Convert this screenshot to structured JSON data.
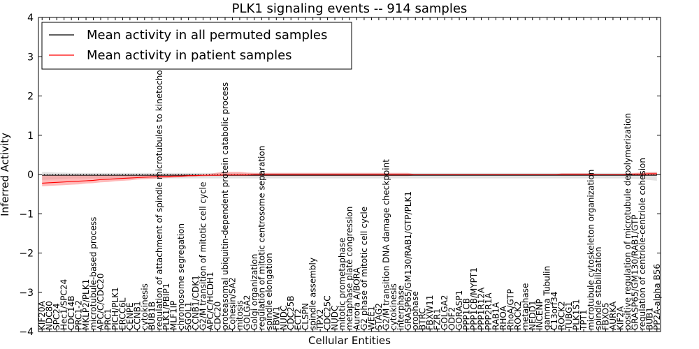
{
  "chart_data": {
    "type": "line",
    "title": "PLK1 signaling events -- 914 samples",
    "xlabel": "Cellular Entities",
    "ylabel": "Inferred Activity",
    "ylim": [
      -4,
      4
    ],
    "yticks": [
      -4,
      -3,
      -2,
      -1,
      0,
      1,
      2,
      3,
      4
    ],
    "ytick_labels": [
      "−4",
      "−3",
      "−2",
      "−1",
      "0",
      "1",
      "2",
      "3",
      "4"
    ],
    "legend": {
      "placement": "top-left",
      "entries": [
        {
          "label": "Mean activity in all permuted samples",
          "color": "#000000"
        },
        {
          "label": "Mean activity in patient samples",
          "color": "#ff0000"
        }
      ]
    },
    "categories": [
      "KIF20A",
      "NDC80",
      "SPC24",
      "Hec1/SPC24",
      "CDC14B",
      "PRC1-2",
      "MKLP2/PLK1",
      "microtubule-based process",
      "APC/C/CDC20",
      "PRC1",
      "PICH/PLK1",
      "ERCC6L",
      "CENPE",
      "CCNB1",
      "cytokinesis",
      "BUB1B",
      "regulation of attachment of spindle microtubules to kinetochore",
      "PLK1/PBIP1",
      "MLF1IP",
      "chromosome segregation",
      "SGOL1",
      "CCNB1/CDK1",
      "G2/M transition of mitotic cell cycle",
      "APC/C/HCDH1",
      "CDC20",
      "proteasomal ubiquitin-dependent protein catabolic process",
      "Cohesin/SA2",
      "mitosis",
      "GOLGA2",
      "Golgi organization",
      "regulation of mitotic centrosome separation",
      "spindle elongation",
      "FBW1",
      "NUDC",
      "CDC25B",
      "ECT2",
      "CLSPN",
      "spindle assembly",
      "TPX2",
      "CDC25C",
      "NUDC",
      "mitotic prometaphase",
      "metaphase plate congression",
      "Aurora A/BORA",
      "G2 phase of mitotic cell cycle",
      "WEE1",
      "STAG2",
      "G2/M transition DNA damage checkpoint",
      "cytokinesis",
      "interphase",
      "GRASP65/GM130/RAB1/GTP/PLK1",
      "prophase",
      "BTRC",
      "FBXW11",
      "FZR1",
      "GOLGA2",
      "ODF2",
      "GORASP1",
      "PPP1CB",
      "PPP1CB/MYPT1",
      "PPP1R12A",
      "PPP2R1A",
      "RAB1A",
      "RHOA",
      "RhoA/GTP",
      "ROCK2",
      "metaphase",
      "NEDD1",
      "INCENP",
      "gamma Tubulin",
      "C13orf34",
      "ROCK2",
      "TUBG1",
      "PLK1S1",
      "TPT1",
      "microtubule cytoskeleton organization",
      "spindle stabilization",
      "FBXO5",
      "AURKA",
      "KIF2A",
      "positive regulation of microtubule depolymerization",
      "GRASP65/GM130/RAB1/GTP",
      "regulation of centriole-centriole cohesion",
      "BUB1",
      "PP2A-alpha B56"
    ],
    "series": [
      {
        "name": "Mean activity in patient samples",
        "color": "#ff0000",
        "values": [
          -0.22,
          -0.21,
          -0.2,
          -0.19,
          -0.18,
          -0.17,
          -0.16,
          -0.15,
          -0.13,
          -0.12,
          -0.11,
          -0.1,
          -0.09,
          -0.08,
          -0.07,
          -0.06,
          -0.05,
          -0.05,
          -0.04,
          -0.04,
          -0.03,
          -0.03,
          -0.02,
          -0.02,
          -0.02,
          -0.01,
          -0.01,
          -0.01,
          -0.01,
          0.0,
          0.0,
          0.0,
          0.0,
          0.0,
          0.0,
          0.0,
          0.0,
          0.0,
          0.0,
          0.0,
          0.0,
          0.0,
          0.0,
          0.0,
          0.0,
          0.0,
          0.0,
          0.0,
          0.0,
          0.0,
          0.0,
          0.0,
          0.0,
          0.0,
          0.0,
          0.0,
          0.0,
          0.0,
          0.0,
          0.0,
          0.0,
          0.0,
          0.0,
          0.0,
          0.0,
          0.0,
          0.0,
          0.0,
          0.0,
          0.0,
          0.0,
          0.0,
          0.0,
          0.0,
          0.0,
          0.0,
          0.0,
          0.0,
          0.0,
          0.0,
          0.0,
          0.01,
          0.01,
          0.02,
          0.02
        ],
        "band_upper": [
          -0.02,
          -0.02,
          -0.02,
          -0.02,
          -0.02,
          -0.02,
          -0.02,
          -0.02,
          -0.02,
          -0.02,
          -0.02,
          -0.02,
          -0.01,
          -0.01,
          -0.01,
          0.0,
          0.0,
          0.0,
          0.0,
          0.0,
          0.0,
          0.0,
          0.0,
          0.02,
          0.05,
          0.07,
          0.07,
          0.07,
          0.05,
          0.04,
          0.04,
          0.04,
          0.04,
          0.04,
          0.04,
          0.04,
          0.04,
          0.04,
          0.04,
          0.04,
          0.04,
          0.04,
          0.04,
          0.04,
          0.04,
          0.04,
          0.04,
          0.04,
          0.04,
          0.04,
          0.04,
          0.0,
          0.0,
          0.0,
          0.0,
          0.0,
          0.0,
          0.0,
          0.0,
          0.0,
          0.0,
          0.0,
          0.0,
          0.0,
          0.0,
          0.0,
          0.0,
          0.0,
          0.0,
          0.0,
          0.0,
          0.03,
          0.03,
          0.03,
          0.03,
          0.03,
          0.0,
          0.0,
          0.0,
          0.0,
          0.03,
          0.04,
          0.05,
          0.06,
          0.06
        ],
        "band_lower": [
          -0.3,
          -0.29,
          -0.28,
          -0.27,
          -0.26,
          -0.25,
          -0.23,
          -0.22,
          -0.2,
          -0.19,
          -0.17,
          -0.16,
          -0.15,
          -0.13,
          -0.12,
          -0.11,
          -0.1,
          -0.09,
          -0.08,
          -0.07,
          -0.06,
          -0.05,
          -0.05,
          -0.04,
          -0.04,
          -0.04,
          -0.04,
          -0.04,
          -0.04,
          -0.04,
          -0.04,
          -0.04,
          -0.04,
          -0.04,
          -0.04,
          -0.04,
          -0.04,
          -0.04,
          -0.04,
          -0.04,
          -0.04,
          -0.04,
          -0.04,
          -0.04,
          -0.04,
          -0.04,
          -0.04,
          -0.04,
          -0.04,
          -0.04,
          -0.04,
          -0.02,
          -0.02,
          -0.02,
          -0.02,
          -0.02,
          -0.02,
          -0.02,
          -0.02,
          -0.02,
          -0.02,
          -0.02,
          -0.02,
          -0.02,
          -0.02,
          -0.02,
          -0.02,
          -0.02,
          -0.02,
          -0.02,
          -0.02,
          -0.02,
          -0.02,
          -0.02,
          -0.02,
          -0.02,
          -0.02,
          -0.02,
          -0.02,
          -0.02,
          -0.02,
          -0.02,
          -0.01,
          -0.01,
          -0.01
        ]
      },
      {
        "name": "Mean activity in all permuted samples",
        "color": "#000000",
        "values": [
          -0.02,
          -0.02,
          -0.02,
          -0.02,
          -0.02,
          -0.02,
          -0.02,
          -0.02,
          -0.02,
          -0.02,
          -0.02,
          -0.02,
          -0.02,
          -0.02,
          -0.02,
          -0.02,
          -0.02,
          -0.02,
          -0.02,
          -0.02,
          -0.02,
          -0.02,
          -0.02,
          -0.02,
          -0.02,
          -0.02,
          -0.02,
          -0.02,
          -0.02,
          -0.02,
          -0.02,
          -0.02,
          -0.02,
          -0.02,
          -0.02,
          -0.02,
          -0.02,
          -0.02,
          -0.02,
          -0.02,
          -0.02,
          -0.02,
          -0.02,
          -0.02,
          -0.02,
          -0.02,
          -0.02,
          -0.02,
          -0.02,
          -0.02,
          -0.02,
          -0.02,
          -0.02,
          -0.02,
          -0.02,
          -0.02,
          -0.02,
          -0.02,
          -0.02,
          -0.02,
          -0.02,
          -0.02,
          -0.02,
          -0.02,
          -0.02,
          -0.02,
          -0.02,
          -0.02,
          -0.02,
          -0.02,
          -0.02,
          -0.02,
          -0.02,
          -0.02,
          -0.02,
          -0.02,
          -0.02,
          -0.02,
          -0.02,
          -0.02,
          -0.02,
          -0.02,
          -0.02,
          -0.02,
          -0.02
        ],
        "band_upper": [
          0.07,
          0.06,
          0.05,
          0.05,
          0.04,
          0.04,
          0.04,
          0.04,
          0.04,
          0.04,
          0.04,
          0.04,
          0.04,
          0.04,
          0.04,
          0.04,
          0.04,
          0.04,
          0.04,
          0.04,
          0.04,
          0.04,
          0.04,
          0.04,
          0.04,
          0.04,
          0.04,
          0.04,
          0.04,
          0.04,
          0.04,
          0.04,
          0.04,
          0.04,
          0.04,
          0.04,
          0.04,
          0.04,
          0.04,
          0.04,
          0.04,
          0.04,
          0.04,
          0.04,
          0.04,
          0.04,
          0.04,
          0.04,
          0.04,
          0.04,
          0.04,
          0.04,
          0.04,
          0.04,
          0.04,
          0.04,
          0.04,
          0.04,
          0.04,
          0.04,
          0.04,
          0.04,
          0.04,
          0.04,
          0.04,
          0.04,
          0.04,
          0.04,
          0.04,
          0.04,
          0.04,
          0.04,
          0.04,
          0.04,
          0.04,
          0.04,
          0.04,
          0.04,
          0.04,
          0.04,
          0.04,
          0.04,
          0.05,
          0.06,
          0.07
        ],
        "band_lower": [
          -0.14,
          -0.13,
          -0.12,
          -0.11,
          -0.1,
          -0.1,
          -0.1,
          -0.1,
          -0.1,
          -0.1,
          -0.1,
          -0.1,
          -0.1,
          -0.1,
          -0.1,
          -0.1,
          -0.1,
          -0.1,
          -0.1,
          -0.1,
          -0.1,
          -0.1,
          -0.1,
          -0.1,
          -0.1,
          -0.1,
          -0.1,
          -0.1,
          -0.1,
          -0.1,
          -0.1,
          -0.1,
          -0.1,
          -0.1,
          -0.1,
          -0.1,
          -0.1,
          -0.1,
          -0.1,
          -0.1,
          -0.1,
          -0.1,
          -0.1,
          -0.1,
          -0.1,
          -0.1,
          -0.1,
          -0.1,
          -0.1,
          -0.1,
          -0.1,
          -0.1,
          -0.1,
          -0.1,
          -0.1,
          -0.1,
          -0.1,
          -0.1,
          -0.1,
          -0.1,
          -0.1,
          -0.1,
          -0.1,
          -0.1,
          -0.1,
          -0.1,
          -0.1,
          -0.1,
          -0.1,
          -0.1,
          -0.1,
          -0.1,
          -0.1,
          -0.1,
          -0.1,
          -0.1,
          -0.1,
          -0.1,
          -0.1,
          -0.1,
          -0.1,
          -0.11,
          -0.12,
          -0.14,
          -0.16
        ]
      }
    ]
  }
}
